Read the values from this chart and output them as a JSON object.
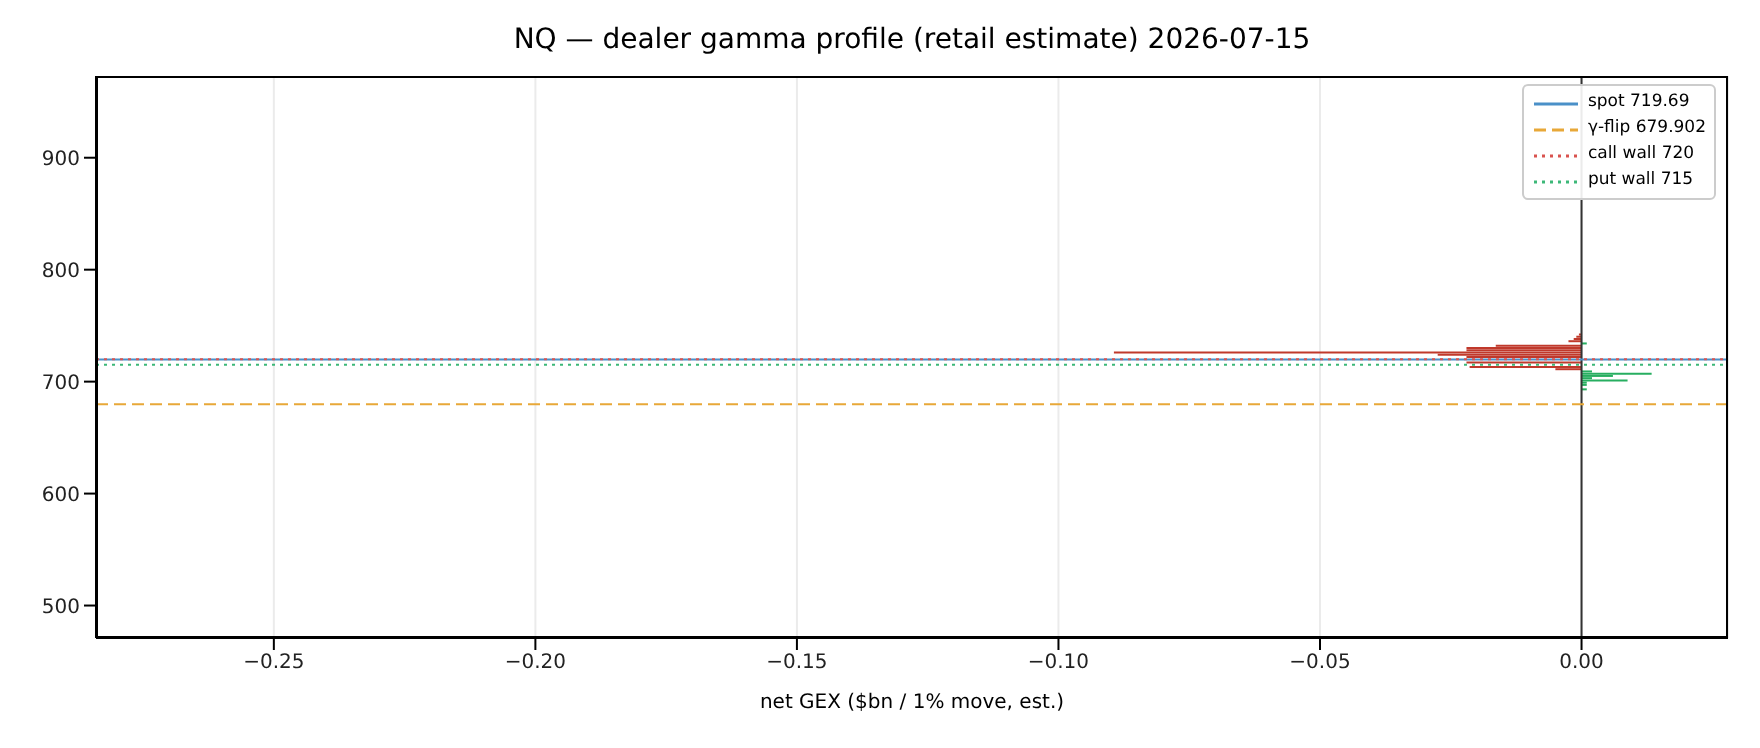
{
  "chart_data": {
    "type": "bar",
    "orientation": "horizontal",
    "title": "NQ — dealer gamma profile (retail estimate)  2026-07-15",
    "xlabel": "net GEX ($bn / 1% move, est.)",
    "x": [
      742,
      740,
      738,
      736,
      734,
      732,
      730,
      728,
      726,
      724,
      722,
      717,
      713,
      711,
      709,
      707,
      705,
      703,
      701,
      699,
      697,
      693
    ],
    "values": [
      -0.0005,
      -0.001,
      -0.0015,
      -0.0025,
      0.001,
      -0.0164,
      -0.022,
      -0.022,
      -0.0894,
      -0.0275,
      -0.022,
      -0.022,
      -0.0214,
      -0.005,
      0.002,
      0.0134,
      0.006,
      0.002,
      0.0088,
      0.001,
      0.001,
      0.001
    ],
    "colors": [
      "#c0392b",
      "#c0392b",
      "#c0392b",
      "#c0392b",
      "#27ae60",
      "#c0392b",
      "#c0392b",
      "#c0392b",
      "#c0392b",
      "#c0392b",
      "#c0392b",
      "#c0392b",
      "#c0392b",
      "#c0392b",
      "#27ae60",
      "#27ae60",
      "#27ae60",
      "#27ae60",
      "#27ae60",
      "#27ae60",
      "#27ae60",
      "#27ae60"
    ],
    "xlim": [
      -0.284,
      0.028
    ],
    "xticks": [
      {
        "value": -0.25,
        "label": "−0.25"
      },
      {
        "value": -0.2,
        "label": "−0.20"
      },
      {
        "value": -0.15,
        "label": "−0.15"
      },
      {
        "value": -0.1,
        "label": "−0.10"
      },
      {
        "value": -0.05,
        "label": "−0.05"
      },
      {
        "value": 0,
        "label": "0.00"
      }
    ],
    "ylim": [
      471,
      973
    ],
    "yticks": [
      500,
      600,
      700,
      800,
      900
    ],
    "grid": "x",
    "legend": "top right",
    "ref_lines": [
      {
        "axis": "x",
        "value": 0,
        "color": "#333333",
        "line_style": "solid"
      },
      {
        "axis": "y",
        "value": 719.69,
        "label": "spot 719.69",
        "color": "#4a90c8",
        "line_style": "solid"
      },
      {
        "axis": "y",
        "value": 679.902,
        "label": "γ-flip 679.902",
        "color": "#e8a838",
        "line_style": "dashed"
      },
      {
        "axis": "y",
        "value": 720,
        "label": "call wall 720",
        "color": "#d9534f",
        "line_style": "dotted"
      },
      {
        "axis": "y",
        "value": 715,
        "label": "put wall 715",
        "color": "#3cb878",
        "line_style": "dotted"
      }
    ]
  }
}
